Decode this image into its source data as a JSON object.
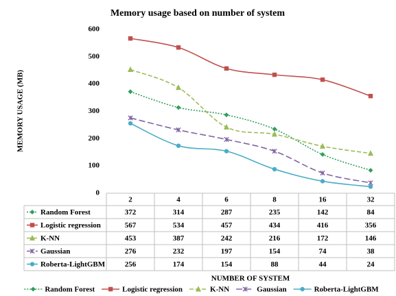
{
  "chart_data": {
    "type": "line",
    "title": "Memory usage based on number of system",
    "x_label": "NUMBER OF SYSTEM",
    "y_label": "MEMORY USAGE (MB)",
    "categories": [
      "2",
      "4",
      "6",
      "8",
      "16",
      "32"
    ],
    "ylim": [
      0,
      600
    ],
    "yticks": [
      0,
      100,
      200,
      300,
      400,
      500,
      600
    ],
    "grid": false,
    "smooth": true,
    "legend": "bottom",
    "data_table": true,
    "series": [
      {
        "name": "Random Forest",
        "color": "#2e9e5b",
        "dash": "2,2",
        "marker": "diamond",
        "values": [
          372,
          314,
          287,
          235,
          142,
          84
        ]
      },
      {
        "name": "Logistic regression",
        "color": "#c0504d",
        "dash": "",
        "marker": "square",
        "values": [
          567,
          534,
          457,
          434,
          416,
          356
        ]
      },
      {
        "name": "K-NN",
        "color": "#9bbb59",
        "dash": "6,3",
        "marker": "triangle",
        "values": [
          453,
          387,
          242,
          216,
          172,
          146
        ]
      },
      {
        "name": "Gaussian",
        "color": "#8064a2",
        "dash": "9,4",
        "marker": "x",
        "values": [
          276,
          232,
          197,
          154,
          74,
          38
        ]
      },
      {
        "name": "Roberta-LightGBM",
        "color": "#4bacc6",
        "dash": "",
        "marker": "circle",
        "values": [
          256,
          174,
          154,
          88,
          44,
          24
        ]
      }
    ]
  }
}
